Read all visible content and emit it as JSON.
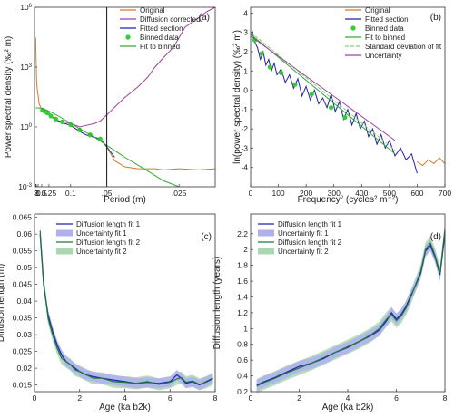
{
  "chart_data": [
    {
      "type": "line",
      "panel_label": "(a)",
      "xlabel": "Period (m)",
      "ylabel_main": "Power spectral density ",
      "ylabel_unit": "(‰² m)",
      "x_scale": "reciprocal",
      "y_scale": "log",
      "ylim": [
        0.001,
        1000000
      ],
      "x_ticks": [
        "3",
        "2",
        "1",
        "0.5",
        "0.25",
        "0.1",
        ".05",
        ".025"
      ],
      "y_ticks": [
        "10^6",
        "10^3",
        "10^0",
        "10^-3"
      ],
      "grid": false,
      "legend_placement": "top-right",
      "vertical_line_at_period": 0.05,
      "series": [
        {
          "name": "Original",
          "color": "#d9782d",
          "x": [
            3,
            2.5,
            2,
            1.7,
            1.5,
            1.2,
            1,
            0.8,
            0.6,
            0.5,
            0.4,
            0.3,
            0.25,
            0.2,
            0.15,
            0.12,
            0.1,
            0.08,
            0.07,
            0.06,
            0.055,
            0.05,
            0.045,
            0.04,
            0.035,
            0.03,
            0.028,
            0.025,
            0.022,
            0.02
          ],
          "y": [
            30000,
            5000,
            800,
            200,
            120,
            60,
            40,
            15,
            10,
            8,
            7,
            6,
            5,
            3,
            2,
            1.5,
            1.2,
            0.6,
            0.4,
            0.3,
            0.25,
            0.1,
            0.02,
            0.01,
            0.008,
            0.008,
            0.007,
            0.008,
            0.007,
            0.008
          ]
        },
        {
          "name": "Diffusion corrected",
          "color": "#a040a0",
          "x": [
            0.5,
            0.4,
            0.3,
            0.25,
            0.2,
            0.15,
            0.12,
            0.1,
            0.08,
            0.07,
            0.06,
            0.055,
            0.05,
            0.045,
            0.04,
            0.035,
            0.032,
            0.03,
            0.028,
            0.026,
            0.025,
            0.024,
            0.022,
            0.021,
            0.02
          ],
          "y": [
            8,
            7,
            6,
            5,
            3,
            2,
            1.8,
            1.5,
            1,
            1.2,
            1.5,
            2,
            4,
            10,
            30,
            100,
            300,
            1000,
            3000,
            10000,
            30000,
            100000,
            300000,
            600000,
            1000000
          ]
        },
        {
          "name": "Fitted section",
          "color": "#2222aa",
          "x": [
            0.5,
            0.4,
            0.3,
            0.25,
            0.2,
            0.15,
            0.12,
            0.1,
            0.08,
            0.07,
            0.06,
            0.055,
            0.05,
            0.045
          ],
          "y": [
            8,
            7,
            6,
            5,
            3,
            2,
            1.5,
            1.2,
            0.6,
            0.4,
            0.3,
            0.25,
            0.1,
            0.03
          ]
        },
        {
          "name": "Binned data",
          "color": "#33cc33",
          "marker": "circle",
          "x": [
            0.45,
            0.35,
            0.28,
            0.22,
            0.17,
            0.13,
            0.1,
            0.08,
            0.065,
            0.055
          ],
          "y": [
            7,
            6,
            5,
            3.5,
            2.5,
            1.8,
            1.3,
            0.7,
            0.4,
            0.25
          ]
        },
        {
          "name": "Fit to binned",
          "color": "#33aa33",
          "x": [
            3,
            1,
            0.5,
            0.3,
            0.2,
            0.15,
            0.12,
            0.1,
            0.08,
            0.06,
            0.05,
            0.04,
            0.033,
            0.028,
            0.025
          ],
          "y": [
            9,
            9,
            8.5,
            7,
            5,
            3.5,
            2.3,
            1.5,
            0.8,
            0.3,
            0.12,
            0.03,
            0.008,
            0.002,
            0.001
          ]
        }
      ]
    },
    {
      "type": "line",
      "panel_label": "(b)",
      "xlabel_main": "Frequency",
      "xlabel_unit": " (cycles² m⁻²)",
      "ylabel": "ln(power spectral density) (‰² m)",
      "xlim": [
        0,
        700
      ],
      "ylim": [
        -5,
        4.3
      ],
      "x_ticks": [
        0,
        100,
        200,
        300,
        400,
        500,
        600,
        700
      ],
      "y_ticks": [
        4,
        3,
        2,
        1,
        0,
        -1,
        -2,
        -3,
        -4
      ],
      "grid": false,
      "legend_placement": "top-right",
      "series": [
        {
          "name": "Original",
          "color": "#d9782d",
          "x": [
            600,
            620,
            640,
            660,
            680,
            700
          ],
          "y": [
            -3.7,
            -3.9,
            -3.6,
            -3.8,
            -3.5,
            -3.8
          ]
        },
        {
          "name": "Fitted section",
          "color": "#2222aa",
          "x": [
            5,
            15,
            25,
            35,
            45,
            55,
            65,
            75,
            85,
            95,
            110,
            125,
            140,
            155,
            170,
            185,
            200,
            215,
            230,
            245,
            260,
            275,
            290,
            305,
            320,
            335,
            350,
            365,
            380,
            395,
            410,
            425,
            440,
            455,
            470,
            485,
            500,
            520,
            540,
            560,
            580,
            600
          ],
          "y": [
            3.1,
            2.5,
            2.2,
            1.6,
            2.0,
            1.3,
            1.6,
            1.0,
            1.4,
            0.8,
            1.1,
            0.4,
            0.8,
            0.1,
            0.6,
            -0.3,
            0.2,
            -0.5,
            0.0,
            -0.7,
            -0.4,
            -0.9,
            -0.2,
            -1.1,
            -0.6,
            -1.5,
            -1.0,
            -1.8,
            -1.2,
            -2.0,
            -1.6,
            -2.4,
            -2.0,
            -2.8,
            -2.3,
            -3.0,
            -2.6,
            -3.4,
            -3.0,
            -3.6,
            -3.3,
            -4.3
          ]
        },
        {
          "name": "Binned data",
          "color": "#33cc33",
          "marker": "circle",
          "x": [
            15,
            40,
            70,
            110,
            160,
            220,
            290,
            340
          ],
          "y": [
            2.6,
            1.9,
            1.2,
            0.9,
            0.3,
            -0.2,
            -0.9,
            -1.4
          ]
        },
        {
          "name": "Fit to binned",
          "color": "#33aa33",
          "x": [
            0,
            520
          ],
          "y": [
            2.9,
            -3.3
          ]
        },
        {
          "name": "Standard deviation of fit",
          "color": "#88cc88",
          "dash": true,
          "x": [
            0,
            520
          ],
          "y": [
            3.0,
            -3.1
          ]
        },
        {
          "name": "Uncertainty",
          "color": "#a040a0",
          "x": [
            0,
            520
          ],
          "y": [
            2.8,
            -2.6
          ]
        }
      ]
    },
    {
      "type": "area",
      "panel_label": "(c)",
      "xlabel": "Age (ka b2k)",
      "ylabel": "Diffusion length (m)",
      "xlim": [
        0,
        8
      ],
      "ylim": [
        0.013,
        0.066
      ],
      "x_ticks": [
        0,
        2,
        4,
        6,
        8
      ],
      "y_ticks": [
        0.065,
        0.06,
        0.055,
        0.05,
        0.045,
        0.04,
        0.035,
        0.03,
        0.025,
        0.02,
        0.015
      ],
      "grid": false,
      "legend_placement": "top-right",
      "series": [
        {
          "name": "Diffusion length fit 1",
          "color": "#2222aa",
          "x": [
            0.25,
            0.4,
            0.6,
            0.8,
            1.0,
            1.2,
            1.4,
            1.6,
            1.8,
            2.0,
            2.3,
            2.6,
            3.0,
            3.5,
            4.0,
            4.5,
            5.0,
            5.5,
            6.0,
            6.3,
            6.5,
            6.7,
            7.0,
            7.3,
            7.6,
            7.9
          ],
          "y": [
            0.06,
            0.045,
            0.036,
            0.031,
            0.027,
            0.024,
            0.022,
            0.021,
            0.02,
            0.019,
            0.018,
            0.0175,
            0.017,
            0.0165,
            0.016,
            0.0155,
            0.0158,
            0.0155,
            0.016,
            0.018,
            0.017,
            0.0155,
            0.016,
            0.015,
            0.016,
            0.017
          ]
        },
        {
          "name": "Uncertainty fit 1",
          "color": "#b0b0ee",
          "band_halfwidth": 0.0015
        },
        {
          "name": "Diffusion length fit 2",
          "color": "#1a7a3a",
          "x": [
            0.25,
            0.4,
            0.6,
            0.8,
            1.0,
            1.2,
            1.4,
            1.6,
            1.8,
            2.0,
            2.3,
            2.6,
            3.0,
            3.5,
            4.0,
            4.5,
            5.0,
            5.5,
            6.0,
            6.3,
            6.5,
            6.7,
            7.0,
            7.3,
            7.6,
            7.9
          ],
          "y": [
            0.061,
            0.046,
            0.035,
            0.03,
            0.026,
            0.023,
            0.022,
            0.021,
            0.0195,
            0.019,
            0.018,
            0.017,
            0.017,
            0.016,
            0.0158,
            0.0155,
            0.016,
            0.0152,
            0.0158,
            0.0168,
            0.0172,
            0.0158,
            0.0162,
            0.0152,
            0.0158,
            0.0168
          ]
        },
        {
          "name": "Uncertainty fit 2",
          "color": "#a8d8b0",
          "band_halfwidth": 0.0018
        }
      ]
    },
    {
      "type": "area",
      "panel_label": "(d)",
      "xlabel": "Age (ka b2k)",
      "ylabel": "Diffusion length (years)",
      "xlim": [
        0,
        8
      ],
      "ylim": [
        0.2,
        2.45
      ],
      "x_ticks": [
        0,
        2,
        4,
        6,
        8
      ],
      "y_ticks": [
        2.2,
        2,
        1.8,
        1.6,
        1.4,
        1.2,
        1,
        0.8,
        0.6,
        0.4,
        0.2
      ],
      "grid": false,
      "legend_placement": "top-left",
      "series": [
        {
          "name": "Diffusion length fit 1",
          "color": "#2222aa",
          "x": [
            0.25,
            0.5,
            1.0,
            1.5,
            2.0,
            2.5,
            3.0,
            3.5,
            4.0,
            4.5,
            5.0,
            5.3,
            5.6,
            5.8,
            6.0,
            6.2,
            6.4,
            6.6,
            6.8,
            7.0,
            7.2,
            7.4,
            7.6,
            7.8,
            8.0
          ],
          "y": [
            0.28,
            0.32,
            0.38,
            0.45,
            0.52,
            0.56,
            0.62,
            0.7,
            0.76,
            0.84,
            0.92,
            0.98,
            1.1,
            1.2,
            1.12,
            1.18,
            1.28,
            1.42,
            1.55,
            1.7,
            1.98,
            2.05,
            1.9,
            1.68,
            2.2
          ]
        },
        {
          "name": "Uncertainty fit 1",
          "color": "#b0b0ee",
          "band_halfwidth": 0.07
        },
        {
          "name": "Diffusion length fit 2",
          "color": "#1a7a3a",
          "x": [
            0.25,
            0.5,
            1.0,
            1.5,
            2.0,
            2.5,
            3.0,
            3.5,
            4.0,
            4.5,
            5.0,
            5.3,
            5.6,
            5.8,
            6.0,
            6.2,
            6.4,
            6.6,
            6.8,
            7.0,
            7.2,
            7.4,
            7.6,
            7.8,
            8.0
          ],
          "y": [
            0.27,
            0.31,
            0.37,
            0.44,
            0.5,
            0.56,
            0.63,
            0.7,
            0.77,
            0.84,
            0.93,
            1.0,
            1.12,
            1.18,
            1.1,
            1.16,
            1.26,
            1.4,
            1.56,
            1.72,
            2.0,
            2.08,
            1.92,
            1.7,
            2.25
          ]
        },
        {
          "name": "Uncertainty fit 2",
          "color": "#a8d8b0",
          "band_halfwidth": 0.09
        }
      ]
    }
  ]
}
